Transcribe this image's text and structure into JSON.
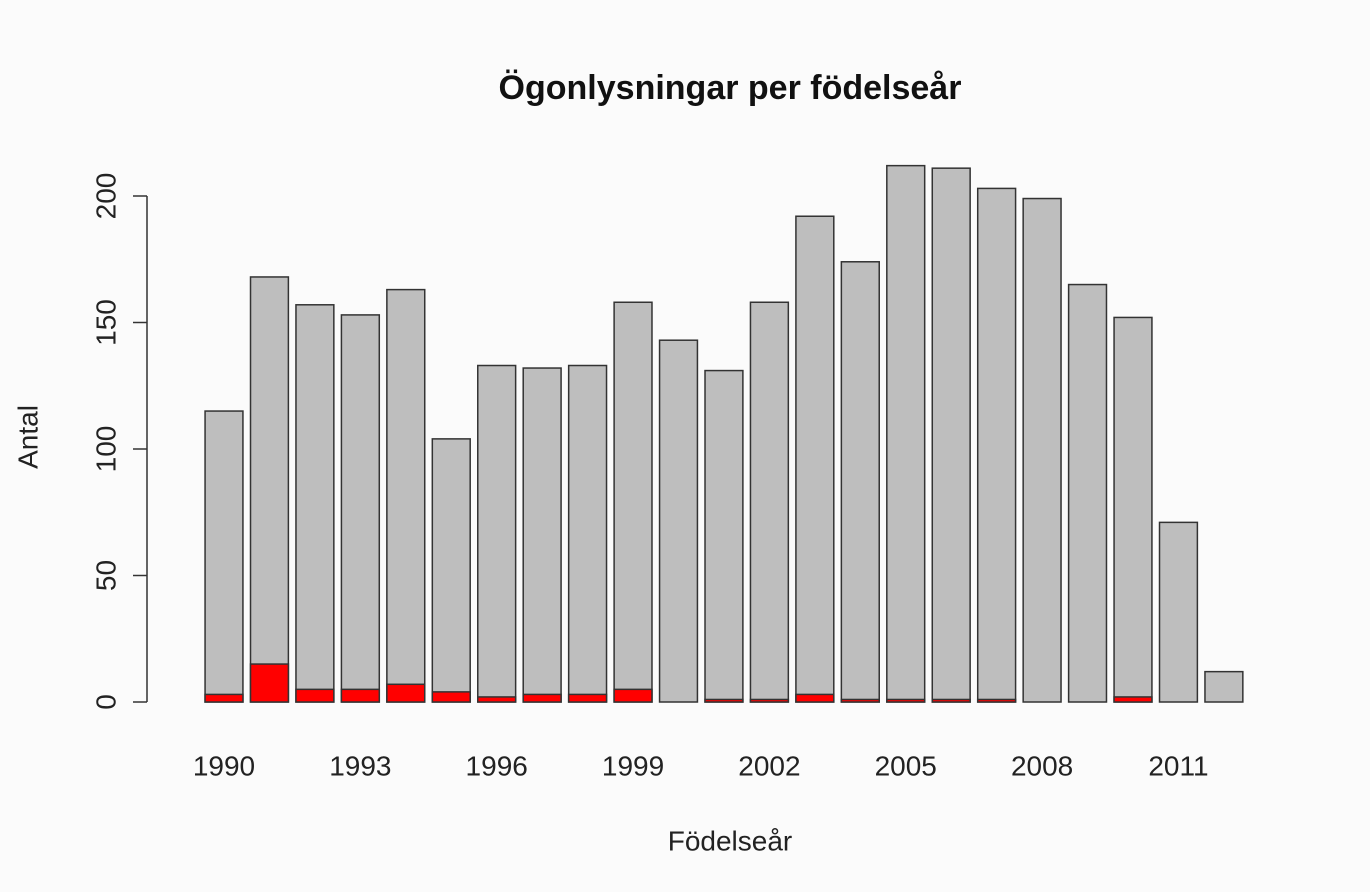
{
  "chart_data": {
    "type": "bar",
    "title": "Ögonlysningar per födelseår",
    "x_label": "Födelseår",
    "y_label": "Antal",
    "categories": [
      "1990",
      null,
      null,
      "1993",
      null,
      null,
      "1996",
      null,
      null,
      "1999",
      null,
      null,
      "2002",
      null,
      null,
      "2005",
      null,
      null,
      "2008",
      null,
      null,
      "2011",
      null
    ],
    "series": [
      {
        "color": "#bebebe",
        "values": [
          115,
          168,
          157,
          153,
          163,
          104,
          133,
          132,
          133,
          158,
          143,
          131,
          158,
          192,
          174,
          212,
          211,
          203,
          199,
          165,
          152,
          71,
          12
        ]
      },
      {
        "color": "#ff0000",
        "values": [
          3,
          15,
          5,
          5,
          7,
          4,
          2,
          3,
          3,
          5,
          0,
          1,
          1,
          3,
          1,
          1,
          1,
          1,
          0,
          0,
          2,
          0,
          0
        ]
      }
    ],
    "ylim": [
      0,
      220
    ],
    "yticks": [
      0,
      50,
      100,
      150,
      200
    ]
  }
}
